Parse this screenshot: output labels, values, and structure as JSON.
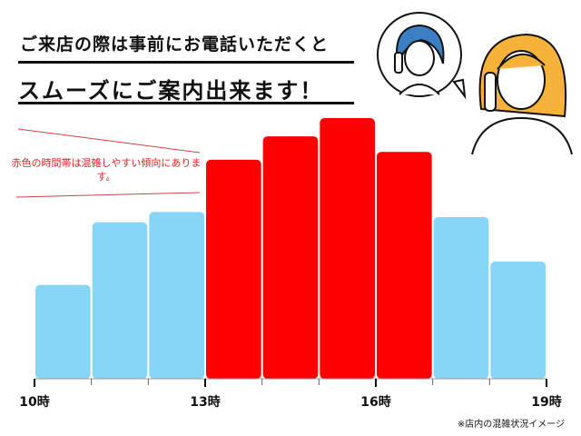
{
  "header": {
    "line1": "ご来店の際は事前にお電話いただくと",
    "line2": "スムーズにご案内出来ます！"
  },
  "annotation": {
    "text": "赤色の時間帯は混雑しやすい傾向にあります。",
    "color": "#d22"
  },
  "footnote": "※店内の混雑状況イメージ",
  "illustration": {
    "icons": [
      "woman-on-phone-icon",
      "speech-bubble-icon",
      "woman-on-phone-icon"
    ]
  },
  "chart_data": {
    "type": "bar",
    "categories": [
      "10-11時",
      "11-12時",
      "12-13時",
      "13-14時",
      "14-15時",
      "15-16時",
      "16-17時",
      "17-18時",
      "18-19時"
    ],
    "values": [
      36,
      60,
      64,
      84,
      93,
      100,
      87,
      62,
      45
    ],
    "colors": [
      "#87d6f8",
      "#87d6f8",
      "#87d6f8",
      "#ff0000",
      "#ff0000",
      "#ff0000",
      "#ff0000",
      "#87d6f8",
      "#87d6f8"
    ],
    "tick_labels": [
      "10時",
      "13時",
      "16時",
      "19時"
    ],
    "title": "",
    "xlabel": "",
    "ylabel": "",
    "ylim": [
      0,
      100
    ],
    "grid": false,
    "legend": "none"
  }
}
